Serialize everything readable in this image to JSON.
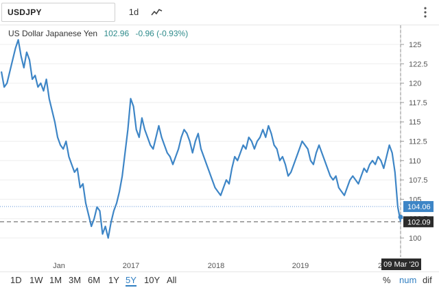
{
  "toolbar": {
    "symbol": "USDJPY",
    "interval": "1d",
    "chart_type_icon": "line-chart-icon",
    "menu_icon": "more-vertical-icon"
  },
  "subtitle": {
    "name": "US Dollar Japanese Yen",
    "price": "102.96",
    "change": "-0.96 (-0.93%)"
  },
  "ranges": [
    "1D",
    "1W",
    "1M",
    "3M",
    "6M",
    "1Y",
    "5Y",
    "10Y",
    "All"
  ],
  "active_range": "5Y",
  "modes": {
    "percent": "%",
    "number": "num",
    "difference": "dif"
  },
  "colors": {
    "line": "#3d85c6",
    "accent": "#2f7ec1",
    "positive_text": "#2e8b8b",
    "price_tag": "#3d85c6",
    "dark_tag": "#2b2b2b"
  },
  "chart_data": {
    "type": "line",
    "ylim": [
      97.5,
      127.5
    ],
    "y_ticks": [
      "100",
      "102.5",
      "105",
      "107.5",
      "110",
      "112.5",
      "115",
      "117.5",
      "120",
      "122.5",
      "125"
    ],
    "x_labels": [
      "Jan",
      "2017",
      "2018",
      "2019",
      "2"
    ],
    "price_tags": [
      "104.06",
      "102.09"
    ],
    "date_tag": "09 Mar '20",
    "series": [
      {
        "values": [
          121.5,
          119.5,
          120.0,
          121.5,
          123.0,
          124.5,
          125.6,
          123.5,
          122.0,
          124.0,
          123.0,
          120.5,
          121.0,
          119.5,
          120.0,
          119.0,
          120.5,
          118.0,
          116.5,
          115.0,
          113.0,
          112.0,
          111.5,
          112.5,
          110.5,
          109.5,
          108.5,
          109.0,
          106.5,
          107.0,
          104.5,
          103.0,
          101.5,
          102.5,
          104.0,
          103.5,
          100.5,
          101.5,
          100.0,
          102.0,
          103.5,
          104.5,
          106.0,
          108.0,
          111.0,
          114.0,
          118.0,
          117.0,
          114.0,
          113.0,
          115.5,
          114.0,
          113.0,
          112.0,
          111.5,
          113.0,
          114.5,
          113.0,
          112.0,
          111.0,
          110.5,
          109.5,
          110.5,
          111.5,
          113.0,
          114.0,
          113.5,
          112.5,
          111.0,
          112.5,
          113.5,
          111.5,
          110.5,
          109.5,
          108.5,
          107.5,
          106.5,
          106.0,
          105.5,
          106.5,
          107.5,
          107.0,
          109.0,
          110.5,
          110.0,
          111.0,
          112.0,
          111.5,
          113.0,
          112.5,
          111.5,
          112.5,
          113.0,
          114.0,
          113.0,
          114.5,
          113.5,
          112.0,
          111.5,
          110.0,
          110.5,
          109.5,
          108.0,
          108.5,
          109.5,
          110.5,
          111.5,
          112.5,
          112.0,
          111.5,
          110.0,
          109.5,
          111.0,
          112.0,
          111.0,
          110.0,
          109.0,
          108.0,
          107.5,
          108.0,
          106.5,
          106.0,
          105.5,
          106.5,
          107.5,
          108.0,
          107.5,
          107.0,
          108.0,
          109.0,
          108.5,
          109.5,
          110.0,
          109.5,
          110.5,
          110.0,
          109.0,
          110.5,
          112.0,
          111.0,
          108.5,
          104.0,
          102.1
        ]
      }
    ]
  }
}
